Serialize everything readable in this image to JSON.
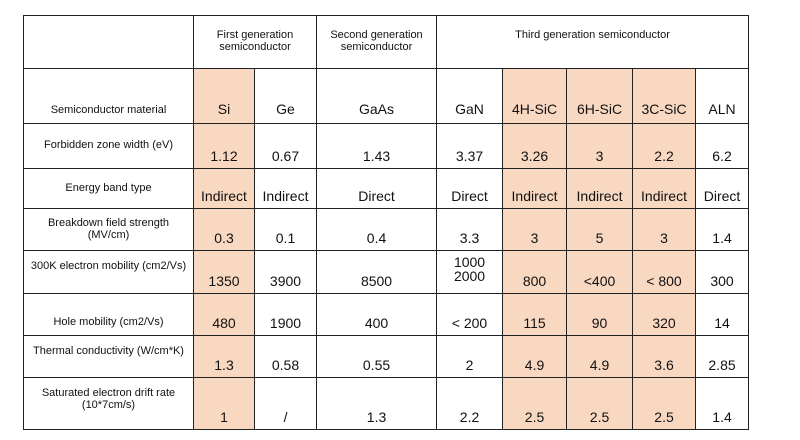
{
  "header": {
    "first_gen": "First generation semiconductor",
    "second_gen": "Second generation semiconductor",
    "third_gen": "Third generation semiconductor"
  },
  "materials": {
    "label": "Semiconductor material",
    "si": "Si",
    "ge": "Ge",
    "gaas": "GaAs",
    "gan": "GaN",
    "sic4h": "4H-SiC",
    "sic6h": "6H-SiC",
    "sic3c": "3C-SiC",
    "aln": "ALN"
  },
  "bandgap": {
    "label": "Forbidden zone width (eV)",
    "si": "1.12",
    "ge": "0.67",
    "gaas": "1.43",
    "gan": "3.37",
    "sic4h": "3.26",
    "sic6h": "3",
    "sic3c": "2.2",
    "aln": "6.2"
  },
  "bandtype": {
    "label": "Energy band type",
    "si": "Indirect",
    "ge": "Indirect",
    "gaas": "Direct",
    "gan": "Direct",
    "sic4h": "Indirect",
    "sic6h": "Indirect",
    "sic3c": "Indirect",
    "aln": "Direct"
  },
  "breakdown": {
    "label": "Breakdown field strength (MV/cm)",
    "si": "0.3",
    "ge": "0.1",
    "gaas": "0.4",
    "gan": "3.3",
    "sic4h": "3",
    "sic6h": "5",
    "sic3c": "3",
    "aln": "1.4"
  },
  "electron_mobility": {
    "label": "300K electron mobility (cm2/Vs)",
    "si": "1350",
    "ge": "3900",
    "gaas": "8500",
    "gan_a": "1000",
    "gan_b": "2000",
    "sic4h": "800",
    "sic6h": "<400",
    "sic3c": "< 800",
    "aln": "300"
  },
  "hole_mobility": {
    "label": "Hole mobility (cm2/Vs)",
    "si": "480",
    "ge": "1900",
    "gaas": "400",
    "gan": "< 200",
    "sic4h": "115",
    "sic6h": "90",
    "sic3c": "320",
    "aln": "14"
  },
  "thermal": {
    "label": "Thermal conductivity (W/cm*K)",
    "si": "1.3",
    "ge": "0.58",
    "gaas": "0.55",
    "gan": "2",
    "sic4h": "4.9",
    "sic6h": "4.9",
    "sic3c": "3.6",
    "aln": "2.85"
  },
  "drift": {
    "label": "Saturated electron drift rate (10*7cm/s)",
    "si": "1",
    "ge": "/",
    "gaas": "1.3",
    "gan": "2.2",
    "sic4h": "2.5",
    "sic6h": "2.5",
    "sic3c": "2.5",
    "aln": "1.4"
  },
  "colors": {
    "highlight": "#f9d8c2",
    "border": "#222222"
  }
}
